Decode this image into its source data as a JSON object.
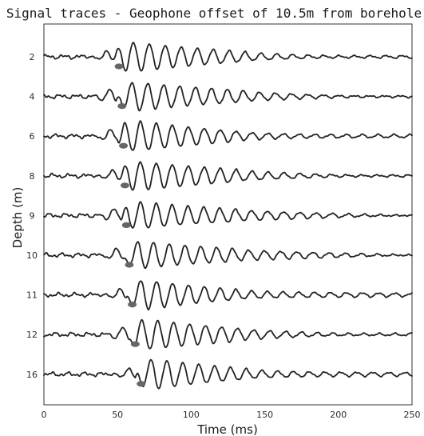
{
  "chart_data": {
    "type": "line",
    "title": "Signal traces - Geophone offset of 10.5m from borehole",
    "xlabel": "Time (ms)",
    "ylabel": "Depth (m)",
    "xlim": [
      0,
      250
    ],
    "x_ticks": [
      0,
      50,
      100,
      150,
      200,
      250
    ],
    "grid": false,
    "series": [
      {
        "name": "2",
        "first_arrival_ms": 51,
        "peak_ms": 77,
        "color": "#222222"
      },
      {
        "name": "4",
        "first_arrival_ms": 53,
        "peak_ms": 76,
        "color": "#222222"
      },
      {
        "name": "6",
        "first_arrival_ms": 54,
        "peak_ms": 71,
        "color": "#222222"
      },
      {
        "name": "8",
        "first_arrival_ms": 55,
        "peak_ms": 71,
        "color": "#222222"
      },
      {
        "name": "9",
        "first_arrival_ms": 56,
        "peak_ms": 71,
        "color": "#222222"
      },
      {
        "name": "10",
        "first_arrival_ms": 58,
        "peak_ms": 69,
        "color": "#222222"
      },
      {
        "name": "11",
        "first_arrival_ms": 60,
        "peak_ms": 71,
        "color": "#222222"
      },
      {
        "name": "12",
        "first_arrival_ms": 62,
        "peak_ms": 72,
        "color": "#222222"
      },
      {
        "name": "16",
        "first_arrival_ms": 66,
        "peak_ms": 78,
        "color": "#222222"
      }
    ],
    "first_arrival_marker_color": "#666666"
  }
}
